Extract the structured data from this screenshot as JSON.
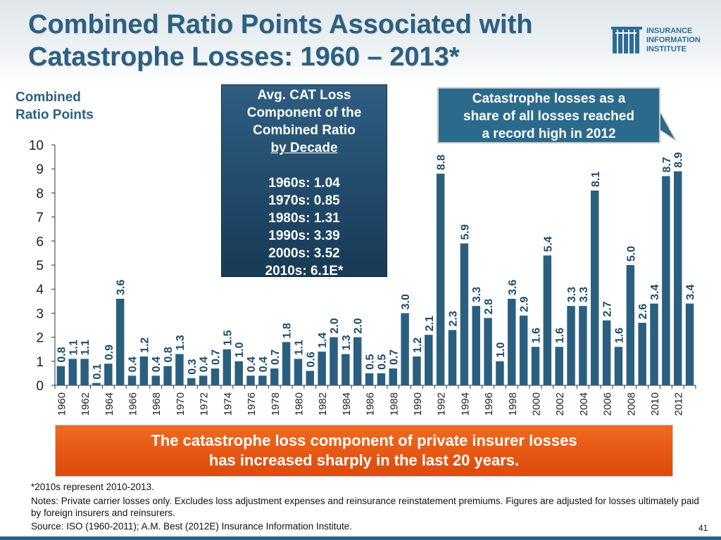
{
  "slide": {
    "title_line1": "Combined Ratio Points Associated with",
    "title_line2": "Catastrophe Losses: 1960 – 2013*",
    "y_axis_title_line1": "Combined",
    "y_axis_title_line2": "Ratio Points",
    "page_number": "41"
  },
  "logo": {
    "line1": "INSURANCE",
    "line2": "INFORMATION",
    "line3": "INSTITUTE",
    "color": "#2c6c9a"
  },
  "decade_box": {
    "header_line1": "Avg. CAT  Loss",
    "header_line2": "Component of the",
    "header_line3": "Combined Ratio",
    "header_line4": "by Decade",
    "items": [
      "1960s: 1.04",
      "1970s: 0.85",
      "1980s: 1.31",
      "1990s: 3.39",
      "2000s: 3.52",
      "2010s: 6.1E*"
    ]
  },
  "callout": {
    "line1": "Catastrophe losses as a",
    "line2": "share of all losses reached",
    "line3": "a record high in 2012"
  },
  "banner": {
    "line1": "The catastrophe loss component of private insurer losses",
    "line2": "has increased sharply in the last 20 years."
  },
  "footnotes": {
    "asterisk": "*2010s represent 2010-2013.",
    "notes": "Notes: Private carrier losses only.  Excludes loss adjustment expenses and reinsurance reinstatement premiums. Figures are adjusted for losses ultimately paid by foreign insurers and reinsurers.",
    "source": "Source: ISO (1960-2011); A.M. Best (2012E) Insurance Information Institute."
  },
  "colors": {
    "bar": "#2b5f7f",
    "title": "#2d5f7f",
    "banner": "#e8571a",
    "decade_box": "#1e4766",
    "callout": "#2c6a8c"
  },
  "chart_data": {
    "type": "bar",
    "title": "Combined Ratio Points Associated with Catastrophe Losses: 1960 – 2013*",
    "ylabel": "Combined Ratio Points",
    "xlabel": "",
    "ylim": [
      0,
      10
    ],
    "yticks": [
      "0",
      "1",
      "2",
      "3",
      "4",
      "5",
      "6",
      "7",
      "8",
      "9",
      "10"
    ],
    "categories": [
      "1960",
      "1961",
      "1962",
      "1963",
      "1964",
      "1965",
      "1966",
      "1967",
      "1968",
      "1969",
      "1970",
      "1971",
      "1972",
      "1973",
      "1974",
      "1975",
      "1976",
      "1977",
      "1978",
      "1979",
      "1980",
      "1981",
      "1982",
      "1983",
      "1984",
      "1985",
      "1986",
      "1987",
      "1988",
      "1989",
      "1990",
      "1991",
      "1992",
      "1993",
      "1994",
      "1995",
      "1996",
      "1997",
      "1998",
      "1999",
      "2000",
      "2001",
      "2002",
      "2003",
      "2004",
      "2005",
      "2006",
      "2007",
      "2008",
      "2009",
      "2010",
      "2011",
      "2012",
      "2013"
    ],
    "values": [
      0.8,
      1.1,
      1.1,
      0.1,
      0.9,
      3.6,
      0.4,
      1.2,
      0.4,
      0.8,
      1.3,
      0.3,
      0.4,
      0.7,
      1.5,
      1.0,
      0.4,
      0.4,
      0.7,
      1.8,
      1.1,
      0.6,
      1.4,
      2.0,
      1.3,
      2.0,
      0.5,
      0.5,
      0.7,
      3.0,
      1.2,
      2.1,
      8.8,
      2.3,
      5.9,
      3.3,
      2.8,
      1.0,
      3.6,
      2.9,
      1.6,
      5.4,
      1.6,
      3.3,
      3.3,
      8.1,
      2.7,
      1.6,
      5.0,
      2.6,
      3.4,
      8.7,
      8.9,
      3.4
    ],
    "data_labels": [
      "0.8",
      "1.1",
      "1.1",
      "0.1",
      "0.9",
      "3.6",
      "0.4",
      "1.2",
      "0.4",
      "0.8",
      "1.3",
      "0.3",
      "0.4",
      "0.7",
      "1.5",
      "1.0",
      "0.4",
      "0.4",
      "0.7",
      "1.8",
      "1.1",
      "0.6",
      "1.4",
      "2.0",
      "1.3",
      "2.0",
      "0.5",
      "0.5",
      "0.7",
      "3.0",
      "1.2",
      "2.1",
      "8.8",
      "2.3",
      "5.9",
      "3.3",
      "2.8",
      "1.0",
      "3.6",
      "2.9",
      "1.6",
      "5.4",
      "1.6",
      "3.3",
      "3.3",
      "8.1",
      "2.7",
      "1.6",
      "5.0",
      "2.6",
      "3.4",
      "8.7",
      "8.9",
      "3.4"
    ],
    "x_tick_labels": [
      "1960",
      "1962",
      "1964",
      "1966",
      "1968",
      "1970",
      "1972",
      "1974",
      "1976",
      "1978",
      "1980",
      "1982",
      "1984",
      "1986",
      "1988",
      "1990",
      "1992",
      "1994",
      "1996",
      "1998",
      "2000",
      "2002",
      "2004",
      "2006",
      "2008",
      "2010",
      "2012"
    ],
    "grid": false
  }
}
